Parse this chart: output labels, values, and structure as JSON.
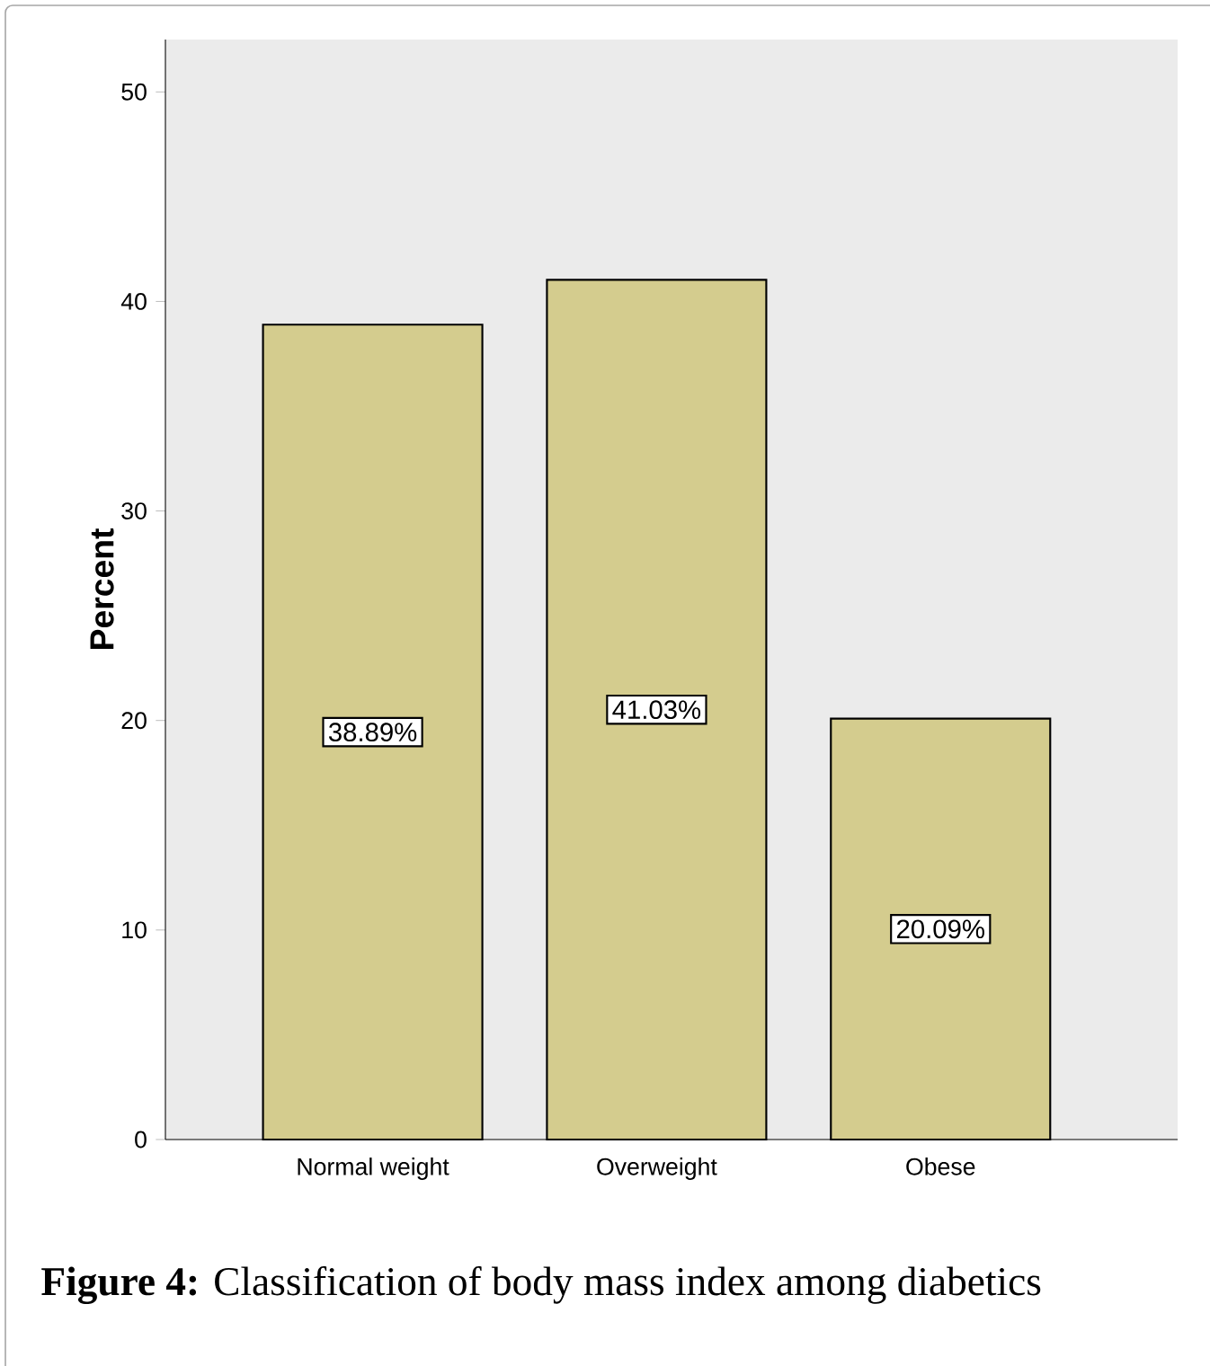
{
  "chart_data": {
    "type": "bar",
    "ylabel": "Percent",
    "categories": [
      "Normal weight",
      "Overweight",
      "Obese"
    ],
    "values": [
      38.89,
      41.03,
      20.09
    ],
    "value_labels": [
      "38.89%",
      "41.03%",
      "20.09%"
    ],
    "color": "#d4cc8e",
    "ylim": [
      0,
      52.5
    ],
    "yticks": [
      0,
      10,
      20,
      30,
      40,
      50
    ],
    "annotations": [
      "**Figure 4:** Classification of body mass index among diabetics"
    ]
  }
}
